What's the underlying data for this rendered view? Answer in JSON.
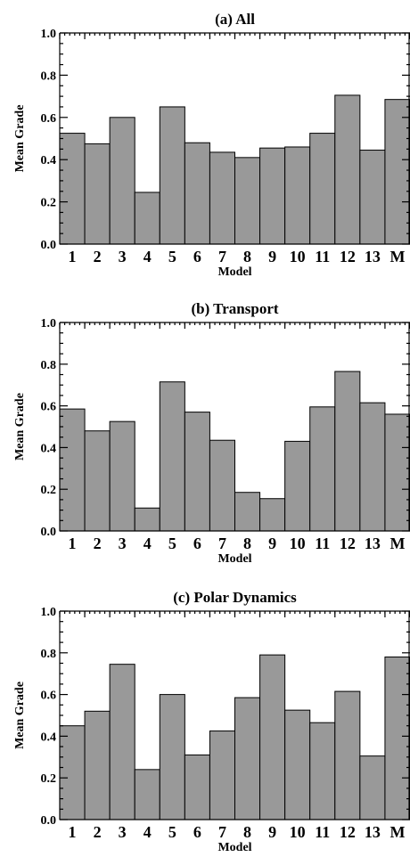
{
  "chart_data": [
    {
      "type": "bar",
      "title": "(a) All",
      "xlabel": "Model",
      "ylabel": "Mean Grade",
      "ylim": [
        0,
        1.0
      ],
      "yticks": [
        "0.0",
        "0.2",
        "0.4",
        "0.6",
        "0.8",
        "1.0"
      ],
      "categories": [
        "1",
        "2",
        "3",
        "4",
        "5",
        "6",
        "7",
        "8",
        "9",
        "10",
        "11",
        "12",
        "13",
        "M"
      ],
      "values": [
        0.525,
        0.475,
        0.6,
        0.245,
        0.65,
        0.48,
        0.435,
        0.41,
        0.455,
        0.46,
        0.525,
        0.705,
        0.445,
        0.685
      ],
      "bar_color": "#999999"
    },
    {
      "type": "bar",
      "title": "(b) Transport",
      "xlabel": "Model",
      "ylabel": "Mean Grade",
      "ylim": [
        0,
        1.0
      ],
      "yticks": [
        "0.0",
        "0.2",
        "0.4",
        "0.6",
        "0.8",
        "1.0"
      ],
      "categories": [
        "1",
        "2",
        "3",
        "4",
        "5",
        "6",
        "7",
        "8",
        "9",
        "10",
        "11",
        "12",
        "13",
        "M"
      ],
      "values": [
        0.585,
        0.48,
        0.525,
        0.11,
        0.715,
        0.57,
        0.435,
        0.185,
        0.155,
        0.43,
        0.595,
        0.765,
        0.615,
        0.56
      ],
      "bar_color": "#999999"
    },
    {
      "type": "bar",
      "title": "(c) Polar Dynamics",
      "xlabel": "Model",
      "ylabel": "Mean Grade",
      "ylim": [
        0,
        1.0
      ],
      "yticks": [
        "0.0",
        "0.2",
        "0.4",
        "0.6",
        "0.8",
        "1.0"
      ],
      "categories": [
        "1",
        "2",
        "3",
        "4",
        "5",
        "6",
        "7",
        "8",
        "9",
        "10",
        "11",
        "12",
        "13",
        "M"
      ],
      "values": [
        0.45,
        0.52,
        0.745,
        0.24,
        0.6,
        0.31,
        0.425,
        0.585,
        0.79,
        0.525,
        0.465,
        0.615,
        0.305,
        0.78
      ],
      "bar_color": "#999999"
    }
  ]
}
